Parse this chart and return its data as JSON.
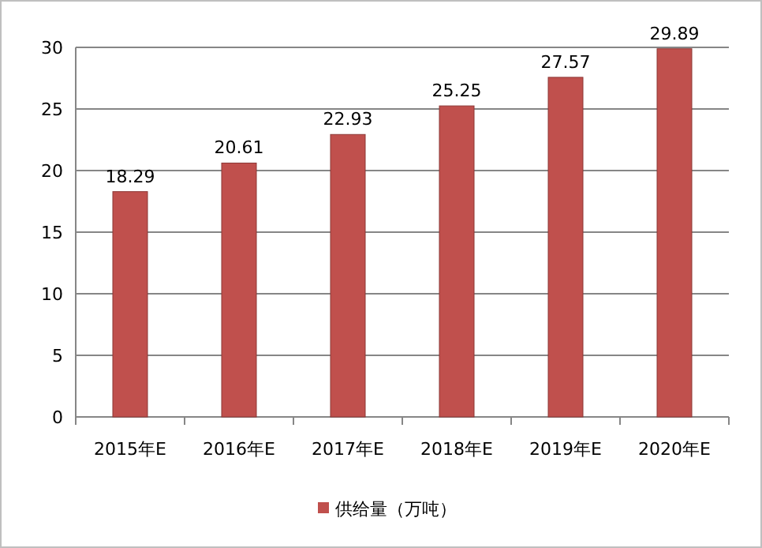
{
  "chart_data": {
    "type": "bar",
    "categories": [
      "2015年E",
      "2016年E",
      "2017年E",
      "2018年E",
      "2019年E",
      "2020年E"
    ],
    "series": [
      {
        "name": "供给量（万吨）",
        "color": "#c0504d",
        "values": [
          18.29,
          20.61,
          22.93,
          25.25,
          27.57,
          29.89
        ]
      }
    ],
    "ylim": [
      0,
      30
    ],
    "yticks": [
      0,
      5,
      10,
      15,
      20,
      25,
      30
    ],
    "grid": "y",
    "legend": "bottom",
    "data_labels": true
  }
}
